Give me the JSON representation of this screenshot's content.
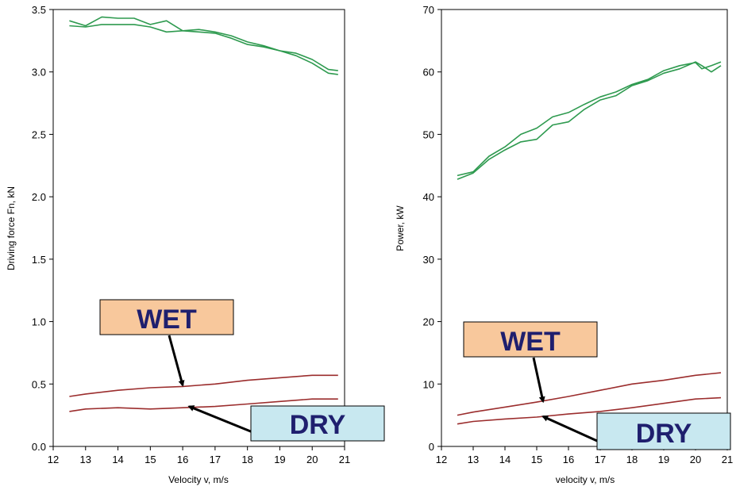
{
  "chart_data": [
    {
      "type": "line",
      "xlabel": "Velocity v, m/s",
      "ylabel": "Driving force Fn, kN",
      "xlim": [
        12,
        21
      ],
      "ylim": [
        0.0,
        3.5
      ],
      "xticks": [
        "12",
        "13",
        "14",
        "15",
        "16",
        "17",
        "18",
        "19",
        "20",
        "21"
      ],
      "yticks": [
        "0.0",
        "0.5",
        "1.0",
        "1.5",
        "2.0",
        "2.5",
        "3.0",
        "3.5"
      ],
      "colors": {
        "green": "#2e9a4f",
        "red": "#9b2d2d"
      },
      "series": [
        {
          "color": "green",
          "x": [
            12.5,
            13.0,
            13.5,
            14.0,
            14.5,
            15.0,
            15.5,
            16.0,
            16.5,
            17.0,
            17.5,
            18.0,
            18.5,
            19.0,
            19.5,
            20.0,
            20.5,
            20.8
          ],
          "y": [
            3.41,
            3.37,
            3.44,
            3.43,
            3.43,
            3.38,
            3.41,
            3.33,
            3.32,
            3.31,
            3.27,
            3.22,
            3.2,
            3.17,
            3.15,
            3.1,
            3.02,
            3.01
          ]
        },
        {
          "color": "green",
          "x": [
            12.5,
            13.0,
            13.5,
            14.0,
            14.5,
            15.0,
            15.5,
            16.0,
            16.5,
            17.0,
            17.5,
            18.0,
            18.5,
            19.0,
            19.5,
            20.0,
            20.5,
            20.8
          ],
          "y": [
            3.37,
            3.36,
            3.38,
            3.38,
            3.38,
            3.36,
            3.32,
            3.33,
            3.34,
            3.32,
            3.29,
            3.24,
            3.21,
            3.17,
            3.13,
            3.07,
            2.99,
            2.98
          ]
        },
        {
          "color": "red",
          "x": [
            12.5,
            13.0,
            14.0,
            15.0,
            16.0,
            17.0,
            18.0,
            19.0,
            20.0,
            20.8
          ],
          "y": [
            0.4,
            0.42,
            0.45,
            0.47,
            0.48,
            0.5,
            0.53,
            0.55,
            0.57,
            0.57
          ]
        },
        {
          "color": "red",
          "x": [
            12.5,
            13.0,
            14.0,
            15.0,
            16.0,
            17.0,
            18.0,
            19.0,
            20.0,
            20.8
          ],
          "y": [
            0.28,
            0.3,
            0.31,
            0.3,
            0.31,
            0.32,
            0.34,
            0.36,
            0.38,
            0.38
          ]
        }
      ],
      "annotations": [
        {
          "text": "WET",
          "fill": "#f8c89c",
          "target": [
            16.0,
            0.49
          ]
        },
        {
          "text": "DRY",
          "fill": "#c8e8f0",
          "target": [
            16.2,
            0.32
          ]
        }
      ]
    },
    {
      "type": "line",
      "xlabel": "velocity v, m/s",
      "ylabel": "Power, kW",
      "xlim": [
        12,
        21
      ],
      "ylim": [
        0,
        70
      ],
      "xticks": [
        "12",
        "13",
        "14",
        "15",
        "16",
        "17",
        "18",
        "19",
        "20",
        "21"
      ],
      "yticks": [
        "0",
        "10",
        "20",
        "30",
        "40",
        "50",
        "60",
        "70"
      ],
      "colors": {
        "green": "#2e9a4f",
        "red": "#9b2d2d"
      },
      "series": [
        {
          "color": "green",
          "x": [
            12.5,
            13.0,
            13.5,
            14.0,
            14.5,
            15.0,
            15.5,
            16.0,
            16.5,
            17.0,
            17.5,
            18.0,
            18.5,
            19.0,
            19.5,
            20.0,
            20.2,
            20.5,
            20.8
          ],
          "y": [
            43.4,
            44.0,
            46.5,
            48.0,
            50.0,
            51.0,
            52.8,
            53.5,
            54.8,
            56.0,
            56.8,
            58.0,
            58.8,
            60.2,
            61.0,
            61.5,
            60.5,
            61.0,
            61.6
          ]
        },
        {
          "color": "green",
          "x": [
            12.5,
            13.0,
            13.5,
            14.0,
            14.5,
            15.0,
            15.5,
            16.0,
            16.5,
            17.0,
            17.5,
            18.0,
            18.5,
            19.0,
            19.5,
            20.0,
            20.2,
            20.5,
            20.8
          ],
          "y": [
            42.8,
            43.8,
            46.0,
            47.5,
            48.8,
            49.2,
            51.5,
            52.0,
            54.0,
            55.5,
            56.2,
            57.8,
            58.6,
            59.8,
            60.5,
            61.6,
            61.0,
            60.0,
            61.0
          ]
        },
        {
          "color": "red",
          "x": [
            12.5,
            13.0,
            14.0,
            15.0,
            16.0,
            17.0,
            18.0,
            19.0,
            20.0,
            20.8
          ],
          "y": [
            5.0,
            5.5,
            6.3,
            7.1,
            8.0,
            9.0,
            10.0,
            10.6,
            11.4,
            11.8
          ]
        },
        {
          "color": "red",
          "x": [
            12.5,
            13.0,
            14.0,
            15.0,
            16.0,
            17.0,
            18.0,
            19.0,
            20.0,
            20.8
          ],
          "y": [
            3.6,
            4.0,
            4.4,
            4.7,
            5.2,
            5.6,
            6.2,
            6.9,
            7.6,
            7.8
          ]
        }
      ],
      "annotations": [
        {
          "text": "WET",
          "fill": "#f8c89c",
          "target": [
            15.2,
            7.2
          ]
        },
        {
          "text": "DRY",
          "fill": "#c8e8f0",
          "target": [
            15.2,
            4.8
          ]
        }
      ]
    }
  ]
}
